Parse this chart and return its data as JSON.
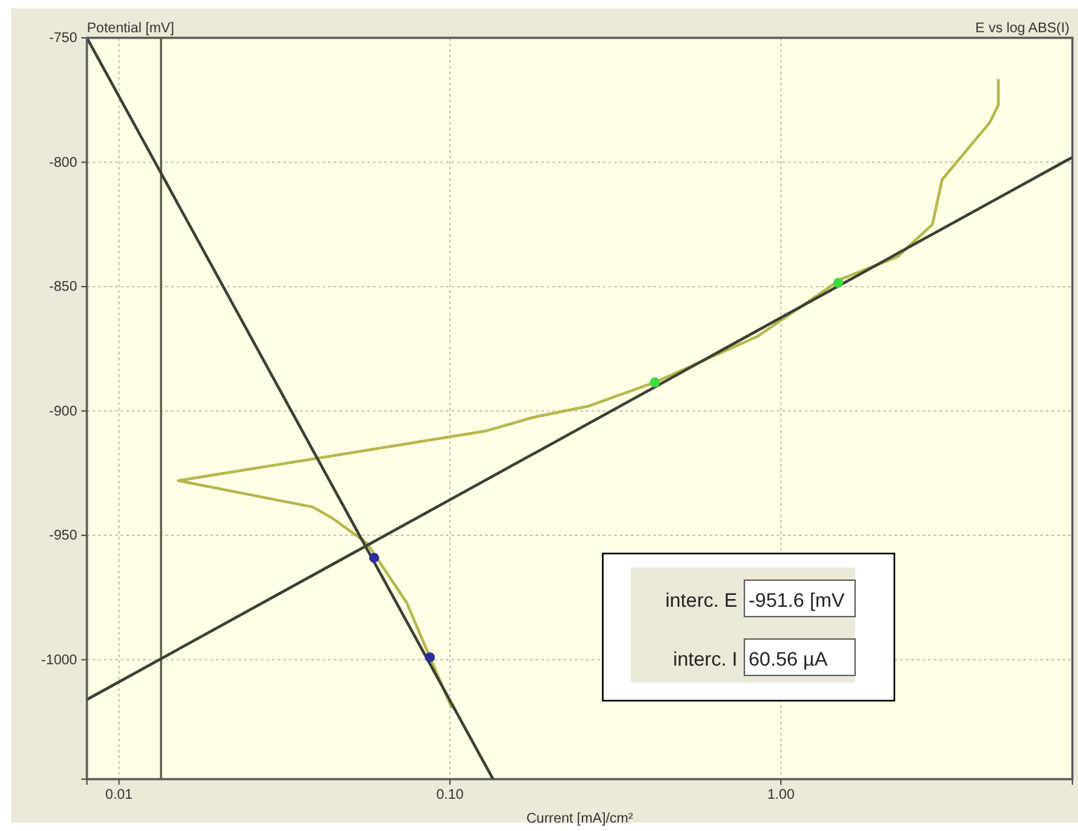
{
  "chart_data": {
    "type": "line",
    "title": "E vs log ABS(I)",
    "xlabel": "Current [mA]/cm²",
    "ylabel": "Potential [mV]",
    "log": "x",
    "grid": true,
    "line_style": "solid",
    "xlim": [
      0.008,
      7.6
    ],
    "xticks": [
      0.01,
      {
        "value": 0.1,
        "label": "0.10"
      },
      {
        "value": 1,
        "label": "1.00"
      }
    ],
    "ylim": [
      -1048,
      -750
    ],
    "yticks": [
      -750,
      -800,
      -850,
      -900,
      -950,
      -1000
    ],
    "ref_lines": [
      {
        "axis": "x",
        "value": 0.0134,
        "color": "#5a5a48"
      }
    ],
    "series": [
      {
        "color": "#b5b84c",
        "x": [
          4.54,
          4.54,
          4.28,
          3.07,
          2.87,
          2.25,
          1.52,
          0.85,
          0.416,
          0.263,
          0.178,
          0.129,
          0.0151,
          0.0385,
          0.044,
          0.056,
          0.074,
          0.087,
          0.101
        ],
        "values": [
          -767,
          -777,
          -784,
          -807,
          -825,
          -838,
          -847,
          -870,
          -888.5,
          -898,
          -902.6,
          -908,
          -928,
          -938.6,
          -943,
          -953,
          -977,
          -999,
          -1019
        ]
      },
      {
        "color": "#3b4032",
        "x": [
          0.008,
          0.135
        ],
        "values": [
          -750,
          -1048
        ]
      },
      {
        "color": "#3b4032",
        "x": [
          0.008,
          7.6
        ],
        "values": [
          -1016,
          -798
        ]
      },
      {
        "type": "scatter",
        "marker": "circle",
        "color": "#2c2c9c",
        "x": [
          0.059,
          0.087
        ],
        "values": [
          -959,
          -999
        ]
      },
      {
        "type": "scatter",
        "marker": "circle",
        "color": "#3fdc3f",
        "x": [
          0.416,
          1.49
        ],
        "values": [
          -888.5,
          -848.5
        ]
      }
    ],
    "annotations": [
      "interc. E",
      "-951.6 [mV",
      "interc. I",
      "60.56 µA"
    ]
  }
}
